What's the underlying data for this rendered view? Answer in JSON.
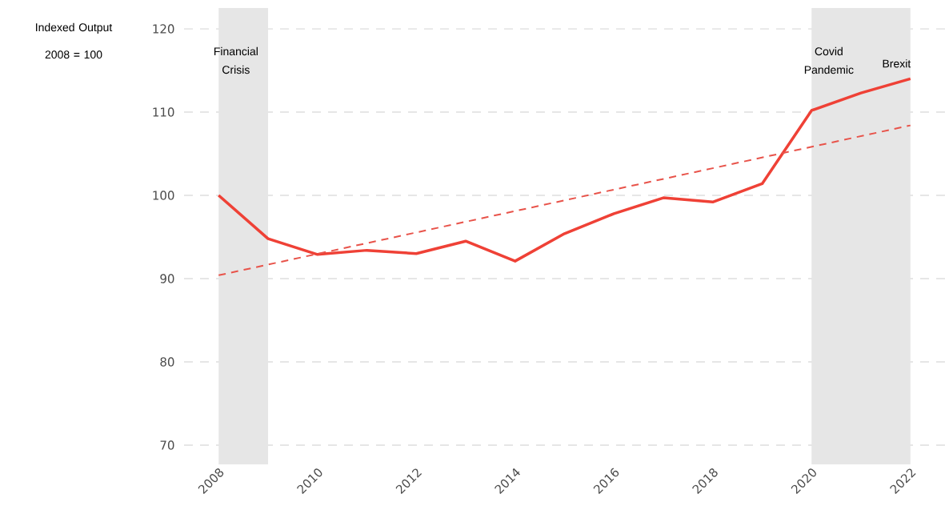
{
  "chart_data": {
    "type": "line",
    "ylabel": "Indexed Output 2008 = 100",
    "x": [
      2008,
      2009,
      2010,
      2011,
      2012,
      2013,
      2014,
      2015,
      2016,
      2017,
      2018,
      2019,
      2020,
      2021,
      2022
    ],
    "series": [
      {
        "color": "#ef4136",
        "line_style": "solid",
        "values": [
          100,
          94.8,
          92.9,
          93.4,
          93.0,
          94.5,
          92.1,
          95.4,
          97.8,
          99.7,
          99.2,
          101.4,
          110.2,
          112.3,
          114.0
        ]
      },
      {
        "type": "line",
        "color": "#e8534a",
        "line_style": "dashed",
        "x": [
          2008,
          2022
        ],
        "values": [
          90.4,
          108.4
        ]
      }
    ],
    "bands": [
      {
        "axis": "x",
        "from": 2008,
        "to": 2009,
        "label": "Financial Crisis",
        "color": "#e6e6e6"
      },
      {
        "axis": "x",
        "from": 2020,
        "to": 2022,
        "label": "Covid Pandemic",
        "color": "#e6e6e6"
      }
    ],
    "annotations": [
      "Brexit"
    ],
    "xlim": [
      2007.3,
      2022.7
    ],
    "ylim": [
      70,
      120
    ],
    "xticks": [
      2008,
      2010,
      2012,
      2014,
      2016,
      2018,
      2020,
      2022
    ],
    "yticks": [
      70,
      80,
      90,
      100,
      110,
      120
    ],
    "grid": "y"
  }
}
